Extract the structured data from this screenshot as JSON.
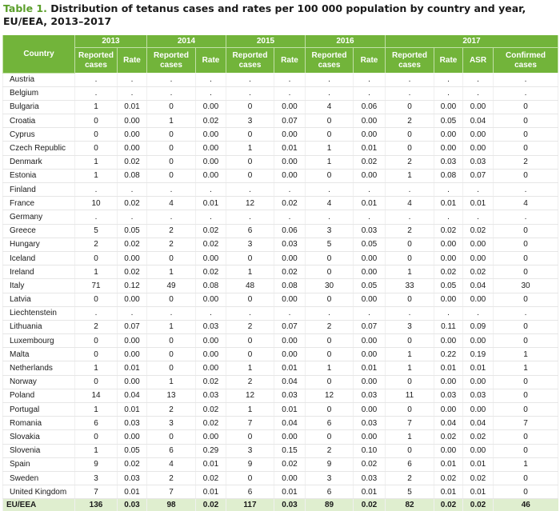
{
  "title": {
    "label": "Table 1.",
    "text": "Distribution of tetanus cases and rates per 100 000 population by country and year, EU/EEA, 2013–2017"
  },
  "header": {
    "country": "Country",
    "years": [
      "2013",
      "2014",
      "2015",
      "2016",
      "2017"
    ],
    "reported_cases": "Reported cases",
    "rate": "Rate",
    "asr": "ASR",
    "confirmed_cases": "Confirmed cases"
  },
  "rows": [
    [
      "Austria",
      ".",
      ".",
      ".",
      ".",
      ".",
      ".",
      ".",
      ".",
      ".",
      ".",
      ".",
      "."
    ],
    [
      "Belgium",
      ".",
      ".",
      ".",
      ".",
      ".",
      ".",
      ".",
      ".",
      ".",
      ".",
      ".",
      "."
    ],
    [
      "Bulgaria",
      "1",
      "0.01",
      "0",
      "0.00",
      "0",
      "0.00",
      "4",
      "0.06",
      "0",
      "0.00",
      "0.00",
      "0"
    ],
    [
      "Croatia",
      "0",
      "0.00",
      "1",
      "0.02",
      "3",
      "0.07",
      "0",
      "0.00",
      "2",
      "0.05",
      "0.04",
      "0"
    ],
    [
      "Cyprus",
      "0",
      "0.00",
      "0",
      "0.00",
      "0",
      "0.00",
      "0",
      "0.00",
      "0",
      "0.00",
      "0.00",
      "0"
    ],
    [
      "Czech Republic",
      "0",
      "0.00",
      "0",
      "0.00",
      "1",
      "0.01",
      "1",
      "0.01",
      "0",
      "0.00",
      "0.00",
      "0"
    ],
    [
      "Denmark",
      "1",
      "0.02",
      "0",
      "0.00",
      "0",
      "0.00",
      "1",
      "0.02",
      "2",
      "0.03",
      "0.03",
      "2"
    ],
    [
      "Estonia",
      "1",
      "0.08",
      "0",
      "0.00",
      "0",
      "0.00",
      "0",
      "0.00",
      "1",
      "0.08",
      "0.07",
      "0"
    ],
    [
      "Finland",
      ".",
      ".",
      ".",
      ".",
      ".",
      ".",
      ".",
      ".",
      ".",
      ".",
      ".",
      "."
    ],
    [
      "France",
      "10",
      "0.02",
      "4",
      "0.01",
      "12",
      "0.02",
      "4",
      "0.01",
      "4",
      "0.01",
      "0.01",
      "4"
    ],
    [
      "Germany",
      ".",
      ".",
      ".",
      ".",
      ".",
      ".",
      ".",
      ".",
      ".",
      ".",
      ".",
      "."
    ],
    [
      "Greece",
      "5",
      "0.05",
      "2",
      "0.02",
      "6",
      "0.06",
      "3",
      "0.03",
      "2",
      "0.02",
      "0.02",
      "0"
    ],
    [
      "Hungary",
      "2",
      "0.02",
      "2",
      "0.02",
      "3",
      "0.03",
      "5",
      "0.05",
      "0",
      "0.00",
      "0.00",
      "0"
    ],
    [
      "Iceland",
      "0",
      "0.00",
      "0",
      "0.00",
      "0",
      "0.00",
      "0",
      "0.00",
      "0",
      "0.00",
      "0.00",
      "0"
    ],
    [
      "Ireland",
      "1",
      "0.02",
      "1",
      "0.02",
      "1",
      "0.02",
      "0",
      "0.00",
      "1",
      "0.02",
      "0.02",
      "0"
    ],
    [
      "Italy",
      "71",
      "0.12",
      "49",
      "0.08",
      "48",
      "0.08",
      "30",
      "0.05",
      "33",
      "0.05",
      "0.04",
      "30"
    ],
    [
      "Latvia",
      "0",
      "0.00",
      "0",
      "0.00",
      "0",
      "0.00",
      "0",
      "0.00",
      "0",
      "0.00",
      "0.00",
      "0"
    ],
    [
      "Liechtenstein",
      ".",
      ".",
      ".",
      ".",
      ".",
      ".",
      ".",
      ".",
      ".",
      ".",
      ".",
      "."
    ],
    [
      "Lithuania",
      "2",
      "0.07",
      "1",
      "0.03",
      "2",
      "0.07",
      "2",
      "0.07",
      "3",
      "0.11",
      "0.09",
      "0"
    ],
    [
      "Luxembourg",
      "0",
      "0.00",
      "0",
      "0.00",
      "0",
      "0.00",
      "0",
      "0.00",
      "0",
      "0.00",
      "0.00",
      "0"
    ],
    [
      "Malta",
      "0",
      "0.00",
      "0",
      "0.00",
      "0",
      "0.00",
      "0",
      "0.00",
      "1",
      "0.22",
      "0.19",
      "1"
    ],
    [
      "Netherlands",
      "1",
      "0.01",
      "0",
      "0.00",
      "1",
      "0.01",
      "1",
      "0.01",
      "1",
      "0.01",
      "0.01",
      "1"
    ],
    [
      "Norway",
      "0",
      "0.00",
      "1",
      "0.02",
      "2",
      "0.04",
      "0",
      "0.00",
      "0",
      "0.00",
      "0.00",
      "0"
    ],
    [
      "Poland",
      "14",
      "0.04",
      "13",
      "0.03",
      "12",
      "0.03",
      "12",
      "0.03",
      "11",
      "0.03",
      "0.03",
      "0"
    ],
    [
      "Portugal",
      "1",
      "0.01",
      "2",
      "0.02",
      "1",
      "0.01",
      "0",
      "0.00",
      "0",
      "0.00",
      "0.00",
      "0"
    ],
    [
      "Romania",
      "6",
      "0.03",
      "3",
      "0.02",
      "7",
      "0.04",
      "6",
      "0.03",
      "7",
      "0.04",
      "0.04",
      "7"
    ],
    [
      "Slovakia",
      "0",
      "0.00",
      "0",
      "0.00",
      "0",
      "0.00",
      "0",
      "0.00",
      "1",
      "0.02",
      "0.02",
      "0"
    ],
    [
      "Slovenia",
      "1",
      "0.05",
      "6",
      "0.29",
      "3",
      "0.15",
      "2",
      "0.10",
      "0",
      "0.00",
      "0.00",
      "0"
    ],
    [
      "Spain",
      "9",
      "0.02",
      "4",
      "0.01",
      "9",
      "0.02",
      "9",
      "0.02",
      "6",
      "0.01",
      "0.01",
      "1"
    ],
    [
      "Sweden",
      "3",
      "0.03",
      "2",
      "0.02",
      "0",
      "0.00",
      "3",
      "0.03",
      "2",
      "0.02",
      "0.02",
      "0"
    ],
    [
      "United Kingdom",
      "7",
      "0.01",
      "7",
      "0.01",
      "6",
      "0.01",
      "6",
      "0.01",
      "5",
      "0.01",
      "0.01",
      "0"
    ]
  ],
  "total": [
    "EU/EEA",
    "136",
    "0.03",
    "98",
    "0.02",
    "117",
    "0.03",
    "89",
    "0.02",
    "82",
    "0.02",
    "0.02",
    "46"
  ],
  "colors": {
    "header_bg": "#72b43a",
    "title_label": "#5a9e2a",
    "total_bg": "#dfeecf"
  }
}
